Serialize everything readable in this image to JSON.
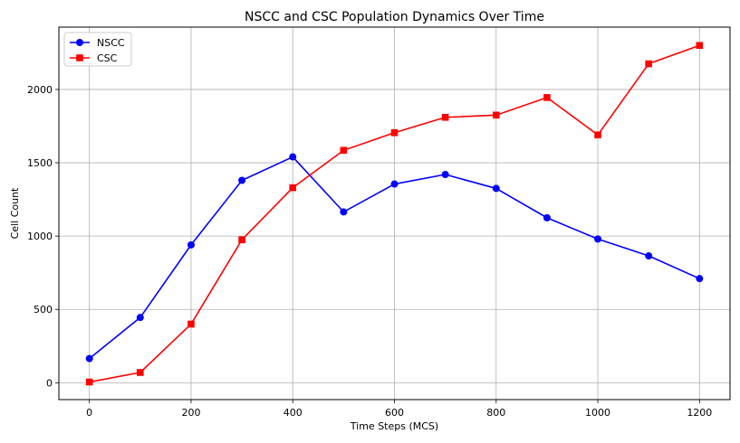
{
  "chart_data": {
    "type": "line",
    "title": "NSCC and CSC Population Dynamics Over Time",
    "xlabel": "Time Steps (MCS)",
    "ylabel": "Cell Count",
    "xlim": [
      -60,
      1260
    ],
    "ylim": [
      -115,
      2425
    ],
    "xticks": [
      0,
      200,
      400,
      600,
      800,
      1000,
      1200
    ],
    "yticks": [
      0,
      500,
      1000,
      1500,
      2000
    ],
    "grid": true,
    "legend_position": "top-left",
    "x": [
      0,
      100,
      200,
      300,
      400,
      500,
      600,
      700,
      800,
      900,
      1000,
      1100,
      1200
    ],
    "series": [
      {
        "name": "NSCC",
        "color": "#0000ff",
        "marker": "circle",
        "values": [
          165,
          445,
          940,
          1380,
          1540,
          1165,
          1355,
          1420,
          1325,
          1125,
          980,
          865,
          710
        ]
      },
      {
        "name": "CSC",
        "color": "#ff0000",
        "marker": "square",
        "values": [
          5,
          70,
          400,
          975,
          1330,
          1585,
          1705,
          1810,
          1825,
          1945,
          1690,
          2175,
          2300
        ]
      }
    ]
  }
}
